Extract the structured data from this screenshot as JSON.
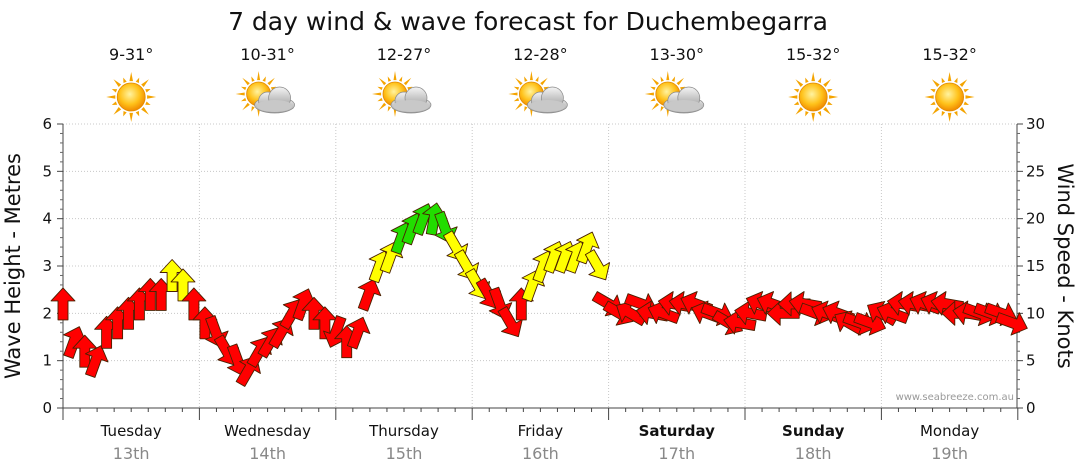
{
  "chart_data": {
    "type": "line",
    "title": "7 day wind & wave forecast for Duchembegarra",
    "ylabel_left": "Wave Height - Metres",
    "ylabel_right": "Wind Speed - Knots",
    "ylim_left": [
      0,
      6
    ],
    "ylim_right": [
      0,
      30
    ],
    "yticks_left": [
      "0",
      "1",
      "2",
      "3",
      "4",
      "5",
      "6"
    ],
    "yticks_right": [
      "0",
      "5",
      "10",
      "15",
      "20",
      "25",
      "30"
    ],
    "grid": true,
    "credit": "www.seabreeze.com.au",
    "days": [
      {
        "name": "Tuesday",
        "date": "13th",
        "temp": "9-31°",
        "icon": "sun-icon",
        "weekend": false
      },
      {
        "name": "Wednesday",
        "date": "14th",
        "temp": "10-31°",
        "icon": "partly-cloudy-icon",
        "weekend": false
      },
      {
        "name": "Thursday",
        "date": "15th",
        "temp": "12-27°",
        "icon": "partly-cloudy-icon",
        "weekend": false
      },
      {
        "name": "Friday",
        "date": "16th",
        "temp": "12-28°",
        "icon": "partly-cloudy-icon",
        "weekend": false
      },
      {
        "name": "Saturday",
        "date": "17th",
        "temp": "13-30°",
        "icon": "partly-cloudy-icon",
        "weekend": true
      },
      {
        "name": "Sunday",
        "date": "18th",
        "temp": "15-32°",
        "icon": "sun-icon",
        "weekend": true
      },
      {
        "name": "Monday",
        "date": "19th",
        "temp": "15-32°",
        "icon": "sun-icon",
        "weekend": false
      }
    ],
    "wind_colors": {
      "low": "#ff0000",
      "mid": "#ffff00",
      "high": "#22dd00"
    },
    "series": [
      {
        "kind": "wind-arrows",
        "unit": "knots",
        "x_days": [
          0.0,
          0.08,
          0.16,
          0.24,
          0.32,
          0.4,
          0.48,
          0.56,
          0.64,
          0.72,
          0.8,
          0.88,
          0.96,
          1.04,
          1.12,
          1.2,
          1.28,
          1.36,
          1.44,
          1.52,
          1.6,
          1.68,
          1.76,
          1.84,
          1.92,
          2.0,
          2.08,
          2.16,
          2.24,
          2.32,
          2.4,
          2.48,
          2.56,
          2.64,
          2.72,
          2.8,
          2.88,
          2.96,
          3.04,
          3.12,
          3.2,
          3.28,
          3.36,
          3.44,
          3.52,
          3.6,
          3.68,
          3.76,
          3.84,
          3.92,
          4.0,
          4.08,
          4.16,
          4.24,
          4.32,
          4.4,
          4.48,
          4.56,
          4.64,
          4.72,
          4.8,
          4.88,
          4.96,
          5.04,
          5.12,
          5.2,
          5.28,
          5.36,
          5.44,
          5.52,
          5.6,
          5.68,
          5.76,
          5.84,
          5.92,
          6.0,
          6.08,
          6.16,
          6.24,
          6.32,
          6.4,
          6.48,
          6.56,
          6.64,
          6.72,
          6.8,
          6.88,
          6.96
        ],
        "values": [
          11,
          7,
          6,
          5,
          8,
          9,
          10,
          11,
          12,
          12,
          14,
          13,
          11,
          9,
          8,
          6,
          5,
          4,
          6,
          7,
          8,
          10,
          11,
          10,
          9,
          8,
          7,
          8,
          12,
          15,
          16,
          18,
          19,
          20,
          20,
          19,
          17,
          15,
          13,
          12,
          11,
          9,
          11,
          13,
          15,
          16,
          16,
          16,
          17,
          15,
          11,
          10,
          10,
          11,
          10,
          10,
          11,
          11,
          11,
          10,
          10,
          9,
          9,
          10,
          11,
          11,
          10,
          11,
          11,
          10,
          10,
          10,
          9,
          9,
          9,
          10,
          10,
          11,
          11,
          11,
          11,
          11,
          10,
          10,
          10,
          10,
          10,
          9
        ],
        "direction_deg": [
          0,
          20,
          0,
          20,
          0,
          0,
          0,
          0,
          0,
          0,
          0,
          0,
          0,
          0,
          160,
          150,
          160,
          30,
          30,
          30,
          30,
          30,
          20,
          0,
          0,
          200,
          0,
          20,
          20,
          20,
          20,
          20,
          20,
          20,
          10,
          160,
          150,
          150,
          150,
          150,
          160,
          150,
          0,
          20,
          20,
          20,
          20,
          20,
          20,
          150,
          120,
          120,
          300,
          110,
          280,
          290,
          280,
          280,
          290,
          290,
          110,
          120,
          280,
          280,
          290,
          290,
          270,
          270,
          280,
          110,
          290,
          290,
          300,
          110,
          110,
          300,
          290,
          280,
          280,
          290,
          290,
          280,
          270,
          280,
          110,
          110,
          110,
          110
        ]
      }
    ]
  }
}
